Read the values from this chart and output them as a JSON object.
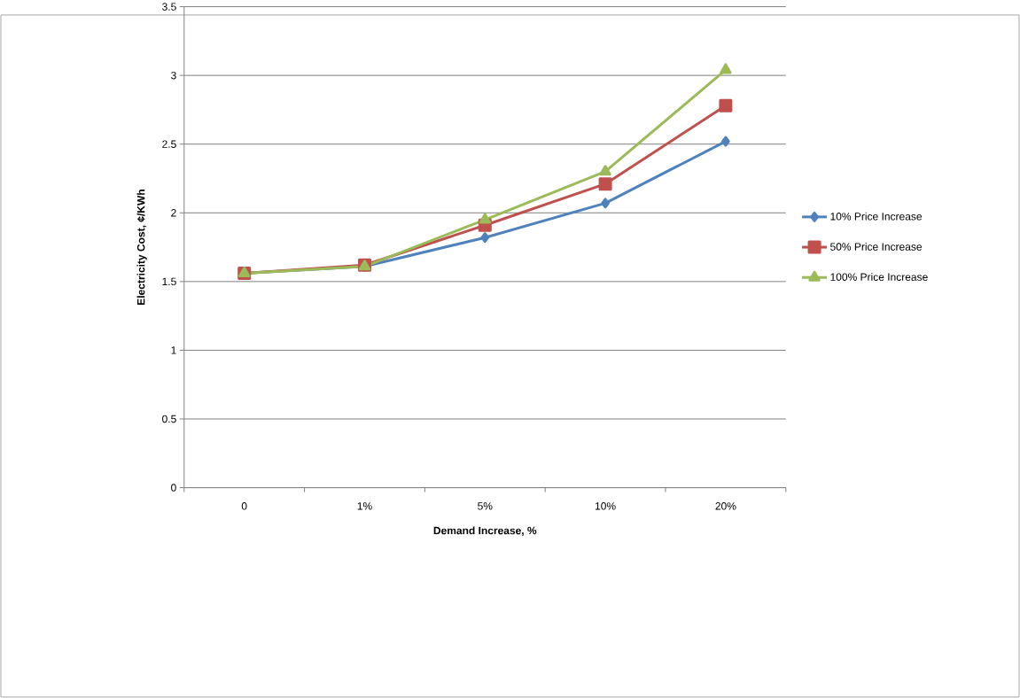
{
  "chart_data": {
    "type": "line",
    "xlabel": "Demand Increase, %",
    "ylabel": "Electricity Cost, ¢/KWh",
    "categories": [
      "0",
      "1%",
      "5%",
      "10%",
      "20%"
    ],
    "series": [
      {
        "name": "10% Price Increase",
        "color": "#4f81bd",
        "marker": "diamond",
        "values": [
          1.56,
          1.61,
          1.82,
          2.07,
          2.52
        ]
      },
      {
        "name": "50% Price Increase",
        "color": "#c0504d",
        "marker": "square",
        "values": [
          1.56,
          1.62,
          1.91,
          2.21,
          2.78
        ]
      },
      {
        "name": "100% Price Increase",
        "color": "#9bbb59",
        "marker": "triangle",
        "values": [
          1.56,
          1.61,
          1.95,
          2.3,
          3.04
        ]
      }
    ],
    "ylim": [
      0,
      3.5
    ],
    "yticks": [
      0,
      0.5,
      1,
      1.5,
      2,
      2.5,
      3,
      3.5
    ],
    "grid": "y",
    "legend": "right",
    "line_style": "solid"
  }
}
